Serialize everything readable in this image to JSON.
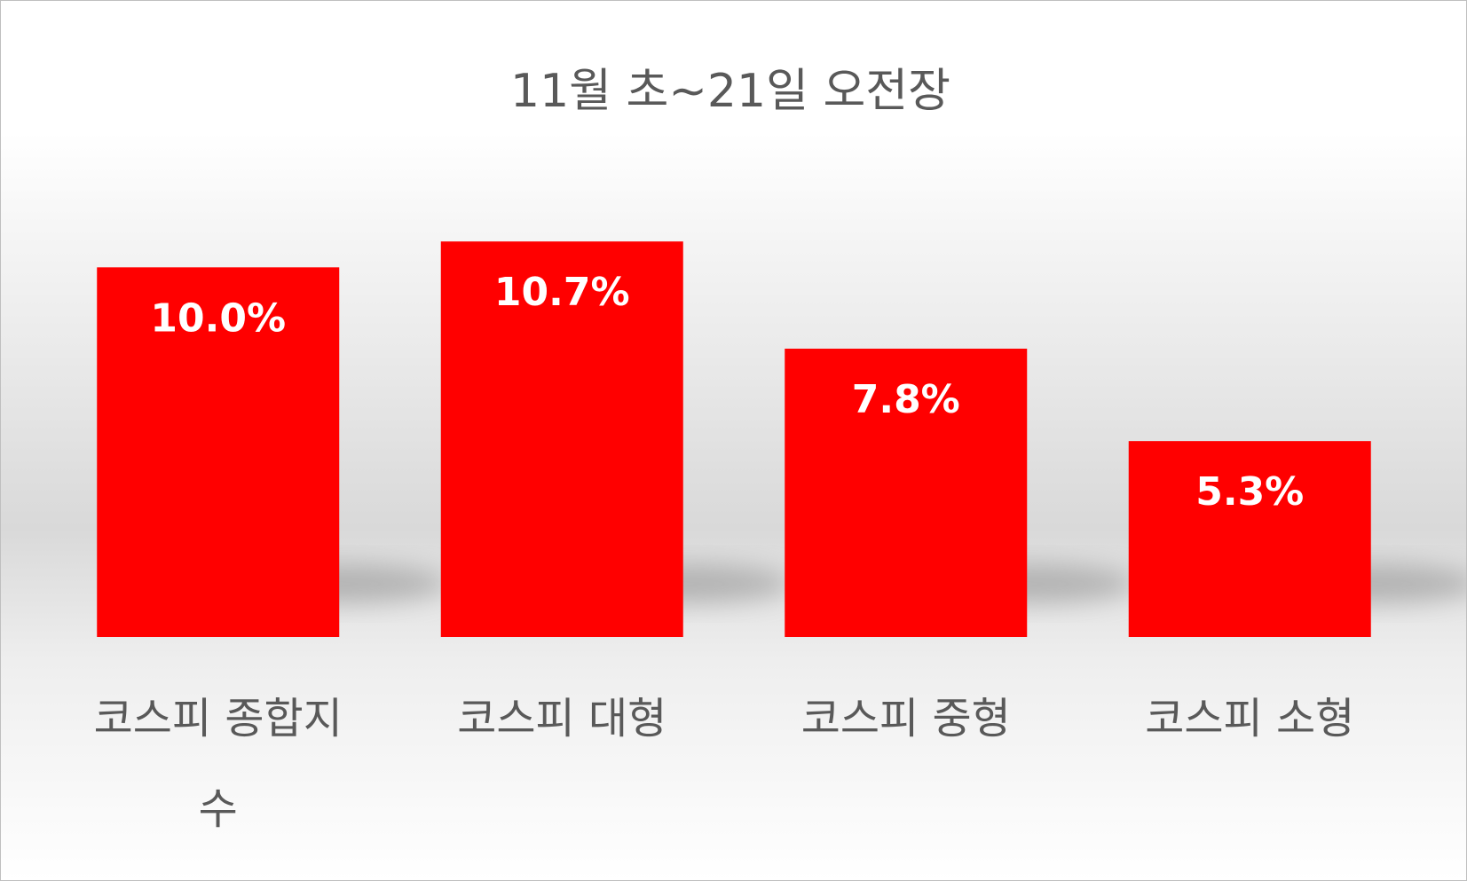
{
  "chart_data": {
    "type": "bar",
    "title": "11월 초~21일 오전장",
    "categories": [
      "코스피 종합지수",
      "코스피 대형",
      "코스피 중형",
      "코스피 소형"
    ],
    "values": [
      10.0,
      10.7,
      7.8,
      5.3
    ],
    "value_labels": [
      "10.0%",
      "10.7%",
      "7.8%",
      "5.3%"
    ],
    "color": "#ff0000",
    "ylim": [
      0,
      12
    ]
  }
}
